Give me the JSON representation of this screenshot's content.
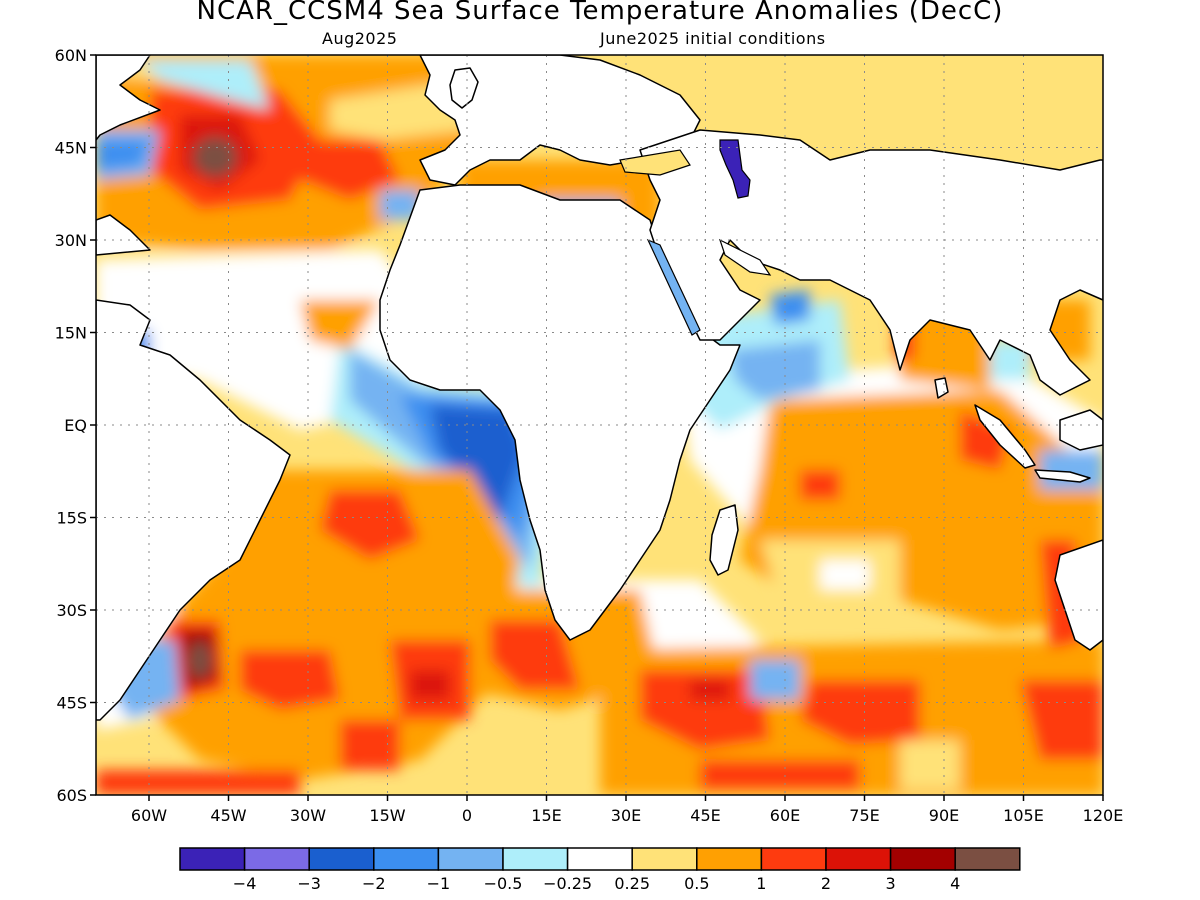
{
  "header": {
    "title": "NCAR_CCSM4 Sea Surface Temperature Anomalies (DecC)",
    "valid_month": "Aug2025",
    "init_conditions": "June2025 initial conditions"
  },
  "map": {
    "lon_range": [
      -70,
      120
    ],
    "lat_range": [
      -60,
      60
    ],
    "lat_labels": [
      "60N",
      "45N",
      "30N",
      "15N",
      "EQ",
      "15S",
      "30S",
      "45S",
      "60S"
    ],
    "lon_labels": [
      "60W",
      "45W",
      "30W",
      "15W",
      "0",
      "15E",
      "30E",
      "45E",
      "60E",
      "75E",
      "90E",
      "105E",
      "120E"
    ],
    "grid": "dotted",
    "land_color": "#ffffff"
  },
  "colorbar": {
    "colors": [
      "#3b22b7",
      "#7b6ae6",
      "#1a5fcf",
      "#3c8ff0",
      "#74b3f2",
      "#aeeefa",
      "#ffffff",
      "#ffe278",
      "#ffa002",
      "#fe3b0f",
      "#dc1207",
      "#a30000",
      "#7b4f42"
    ],
    "labels": [
      "-4",
      "-3",
      "-2",
      "-1",
      "-0.5",
      "-0.25",
      "0.25",
      "0.5",
      "1",
      "2",
      "3",
      "4"
    ]
  },
  "anomaly_regions": [
    {
      "region": "NW Atlantic",
      "anomaly_range": "3 to 4+"
    },
    {
      "region": "Gulf of Guinea / SE Atlantic",
      "anomaly_range": "-2 to -0.5"
    },
    {
      "region": "South Atlantic near 40S 50W",
      "anomaly_range": "3 to 4+"
    },
    {
      "region": "Southern Indian Ocean",
      "anomaly_range": "0.5 to 2"
    },
    {
      "region": "Caspian Sea",
      "anomaly_range": "-4 to -3"
    }
  ]
}
